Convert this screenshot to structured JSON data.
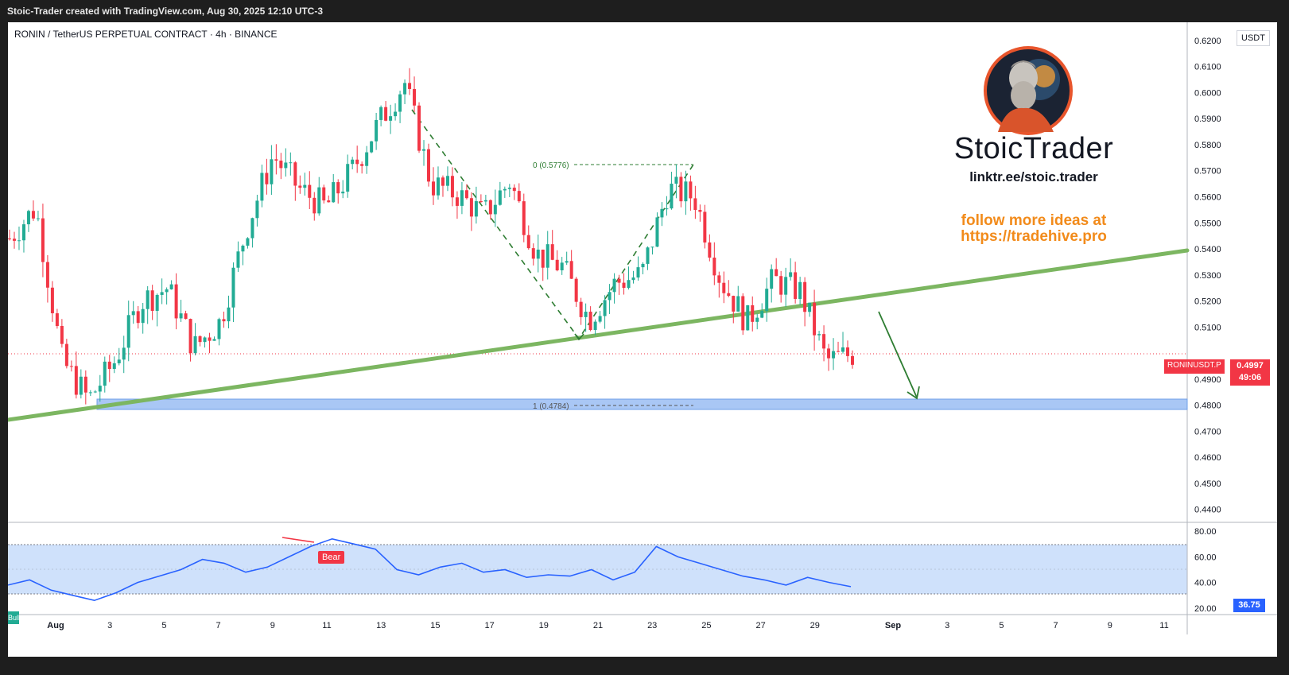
{
  "header": {
    "attribution": "Stoic-Trader created with TradingView.com, Aug 30, 2025 12:10 UTC-3"
  },
  "chart": {
    "title": "RONIN / TetherUS PERPETUAL CONTRACT · 4h · BINANCE",
    "currency": "USDT",
    "symbol_tag": "RONINUSDT.P",
    "last_price": "0.4997",
    "countdown": "49:06",
    "price_axis": [
      "0.6200",
      "0.6100",
      "0.6000",
      "0.5900",
      "0.5800",
      "0.5700",
      "0.5600",
      "0.5500",
      "0.5400",
      "0.5300",
      "0.5200",
      "0.5100",
      "0.4900",
      "0.4800",
      "0.4700",
      "0.4600",
      "0.4500",
      "0.4400"
    ],
    "time_axis": [
      "Aug",
      "3",
      "5",
      "7",
      "9",
      "11",
      "13",
      "15",
      "17",
      "19",
      "21",
      "23",
      "25",
      "27",
      "29",
      "Sep",
      "3",
      "5",
      "7",
      "9",
      "11"
    ],
    "fib_top_label": "0 (0.5776)",
    "fib_bottom_label": "1 (0.4784)",
    "colors": {
      "up": "#22ab94",
      "down": "#f23645",
      "trendline": "#7cb661",
      "support_zone": "#a9c7f5",
      "zigzag": "#2e7d32",
      "rsi_line": "#2962ff",
      "rsi_band": "#cfe1fb"
    }
  },
  "rsi": {
    "axis": [
      "80.00",
      "60.00",
      "40.00",
      "20.00"
    ],
    "value": "36.75",
    "bear_label": "Bear",
    "bull_label": "Bull"
  },
  "brand": {
    "name": "StoicTrader",
    "link": "linktr.ee/stoic.trader",
    "promo_line1": "follow more ideas at",
    "promo_line2": "https://tradehive.pro",
    "avatar_icon": "stoic-bust-avatar-icon"
  },
  "chart_data": {
    "type": "candlestick",
    "title": "RONIN / TetherUS PERPETUAL CONTRACT · 4h · BINANCE",
    "ylim": [
      0.435,
      0.627
    ],
    "series": [
      {
        "name": "price_path",
        "points": [
          [
            "Jul 31",
            0.544
          ],
          [
            "Aug 1",
            0.556
          ],
          [
            "Aug 2",
            0.497
          ],
          [
            "Aug 2 20:00",
            0.482
          ],
          [
            "Aug 3",
            0.497
          ],
          [
            "Aug 4",
            0.52
          ],
          [
            "Aug 5",
            0.525
          ],
          [
            "Aug 6",
            0.502
          ],
          [
            "Aug 7",
            0.512
          ],
          [
            "Aug 8",
            0.548
          ],
          [
            "Aug 9",
            0.576
          ],
          [
            "Aug 10",
            0.563
          ],
          [
            "Aug 11",
            0.556
          ],
          [
            "Aug 12",
            0.57
          ],
          [
            "Aug 13",
            0.588
          ],
          [
            "Aug 14",
            0.604
          ],
          [
            "Aug 14 16:00",
            0.565
          ],
          [
            "Aug 15",
            0.561
          ],
          [
            "Aug 16",
            0.553
          ],
          [
            "Aug 17",
            0.566
          ],
          [
            "Aug 18",
            0.538
          ],
          [
            "Aug 19",
            0.533
          ],
          [
            "Aug 20",
            0.513
          ],
          [
            "Aug 21",
            0.527
          ],
          [
            "Aug 22",
            0.53
          ],
          [
            "Aug 23",
            0.563
          ],
          [
            "Aug 24",
            0.56
          ],
          [
            "Aug 25",
            0.528
          ],
          [
            "Aug 26",
            0.512
          ],
          [
            "Aug 27",
            0.528
          ],
          [
            "Aug 28",
            0.524
          ],
          [
            "Aug 29",
            0.497
          ],
          [
            "Aug 30",
            0.4997
          ]
        ]
      }
    ],
    "annotations": {
      "fib_0": 0.5776,
      "fib_1": 0.4784,
      "support_zone": [
        0.4764,
        0.4804
      ]
    },
    "rsi": {
      "ylim": [
        15,
        85
      ],
      "band": [
        30,
        70
      ],
      "values": [
        38,
        42,
        34,
        30,
        26,
        32,
        40,
        45,
        50,
        58,
        55,
        48,
        52,
        60,
        68,
        74,
        70,
        66,
        50,
        46,
        52,
        55,
        48,
        50,
        44,
        46,
        45,
        50,
        42,
        48,
        68,
        60,
        55,
        50,
        45,
        42,
        38,
        44,
        40,
        36.75
      ]
    }
  }
}
